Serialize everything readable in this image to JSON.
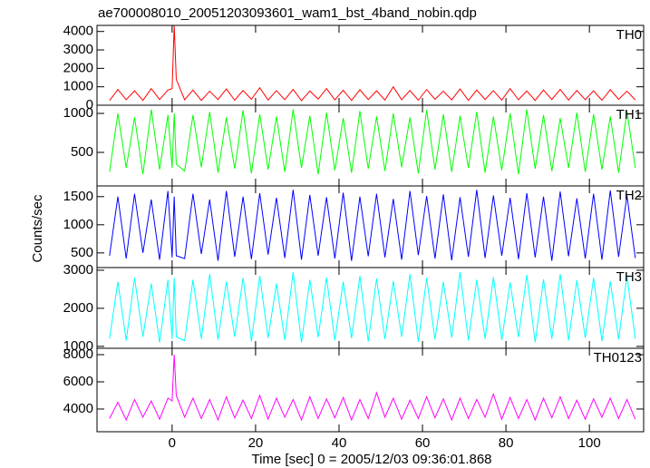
{
  "title": "ae700008010_20051203093601_wam1_bst_4band_nobin.qdp",
  "x_label": "Time [sec] 0 = 2005/12/03 09:36:01.868",
  "y_label": "Counts/sec",
  "chart_data": [
    {
      "type": "line",
      "name": "TH0",
      "color": "#ff0000",
      "x": [
        -15,
        -13,
        -11,
        -9,
        -7,
        -5,
        -3,
        -1,
        0,
        0.5,
        1,
        3,
        5,
        7,
        9,
        11,
        13,
        15,
        17,
        19,
        21,
        23,
        25,
        27,
        29,
        31,
        33,
        35,
        37,
        39,
        41,
        43,
        45,
        47,
        49,
        51,
        53,
        55,
        57,
        59,
        61,
        63,
        65,
        67,
        69,
        71,
        73,
        75,
        77,
        79,
        81,
        83,
        85,
        87,
        89,
        91,
        93,
        95,
        97,
        99,
        101,
        103,
        105,
        107,
        109,
        111
      ],
      "values": [
        250,
        850,
        300,
        780,
        260,
        900,
        310,
        820,
        900,
        4330,
        1400,
        300,
        820,
        260,
        760,
        310,
        880,
        270,
        800,
        320,
        950,
        280,
        790,
        300,
        860,
        250,
        770,
        330,
        900,
        290,
        810,
        260,
        840,
        310,
        780,
        280,
        1000,
        300,
        800,
        270,
        850,
        320,
        760,
        290,
        880,
        260,
        820,
        310,
        790,
        280,
        900,
        300,
        770,
        260,
        830,
        310,
        860,
        280,
        800,
        300,
        780,
        270,
        840,
        320,
        760,
        290
      ],
      "xlim": [
        -18,
        113
      ],
      "xticks": [
        0,
        20,
        40,
        60,
        80,
        100
      ],
      "ylim": [
        0,
        4330
      ],
      "yticks": [
        0,
        1000,
        2000,
        3000,
        4000
      ]
    },
    {
      "type": "line",
      "name": "TH1",
      "color": "#00ff00",
      "x": [
        -15,
        -13,
        -11,
        -9,
        -7,
        -5,
        -3,
        -1,
        0,
        0.5,
        1,
        3,
        5,
        7,
        9,
        11,
        13,
        15,
        17,
        19,
        21,
        23,
        25,
        27,
        29,
        31,
        33,
        35,
        37,
        39,
        41,
        43,
        45,
        47,
        49,
        51,
        53,
        55,
        57,
        59,
        61,
        63,
        65,
        67,
        69,
        71,
        73,
        75,
        77,
        79,
        81,
        83,
        85,
        87,
        89,
        91,
        93,
        95,
        97,
        99,
        101,
        103,
        105,
        107,
        109,
        111
      ],
      "values": [
        250,
        1000,
        300,
        950,
        220,
        1050,
        280,
        980,
        300,
        1000,
        350,
        260,
        980,
        310,
        1020,
        240,
        950,
        290,
        1040,
        230,
        990,
        280,
        960,
        250,
        1050,
        300,
        970,
        220,
        1010,
        270,
        940,
        240,
        1030,
        290,
        960,
        260,
        1000,
        310,
        950,
        230,
        1045,
        280,
        990,
        250,
        970,
        300,
        1020,
        240,
        960,
        270,
        1000,
        220,
        1050,
        290,
        980,
        260,
        940,
        300,
        1010,
        250,
        990,
        280,
        960,
        240,
        1030,
        300
      ],
      "xlim": [
        -18,
        113
      ],
      "xticks": [
        0,
        20,
        40,
        60,
        80,
        100
      ],
      "ylim": [
        70,
        1105
      ],
      "yticks": [
        500,
        1000
      ]
    },
    {
      "type": "line",
      "name": "TH2",
      "color": "#0000ff",
      "x": [
        -15,
        -13,
        -11,
        -9,
        -7,
        -5,
        -3,
        -1,
        0,
        0.5,
        1,
        3,
        5,
        7,
        9,
        11,
        13,
        15,
        17,
        19,
        21,
        23,
        25,
        27,
        29,
        31,
        33,
        35,
        37,
        39,
        41,
        43,
        45,
        47,
        49,
        51,
        53,
        55,
        57,
        59,
        61,
        63,
        65,
        67,
        69,
        71,
        73,
        75,
        77,
        79,
        81,
        83,
        85,
        87,
        89,
        91,
        93,
        95,
        97,
        99,
        101,
        103,
        105,
        107,
        109,
        111
      ],
      "values": [
        450,
        1500,
        400,
        1550,
        500,
        1450,
        380,
        1600,
        420,
        1500,
        450,
        400,
        1550,
        480,
        1450,
        360,
        1600,
        430,
        1500,
        390,
        1560,
        470,
        1480,
        410,
        1620,
        380,
        1530,
        450,
        1490,
        400,
        1570,
        360,
        1500,
        440,
        1550,
        420,
        1460,
        380,
        1600,
        460,
        1510,
        400,
        1540,
        370,
        1490,
        430,
        1620,
        410,
        1520,
        450,
        1480,
        390,
        1560,
        420,
        1500,
        360,
        1590,
        440,
        1470,
        400,
        1550,
        380,
        1610,
        430,
        1520,
        410
      ],
      "xlim": [
        -18,
        113
      ],
      "xticks": [
        0,
        20,
        40,
        60,
        80,
        100
      ],
      "ylim": [
        240,
        1690
      ],
      "yticks": [
        500,
        1000,
        1500
      ]
    },
    {
      "type": "line",
      "name": "TH3",
      "color": "#00ffff",
      "x": [
        -15,
        -13,
        -11,
        -9,
        -7,
        -5,
        -3,
        -1,
        0,
        0.5,
        1,
        3,
        5,
        7,
        9,
        11,
        13,
        15,
        17,
        19,
        21,
        23,
        25,
        27,
        29,
        31,
        33,
        35,
        37,
        39,
        41,
        43,
        45,
        47,
        49,
        51,
        53,
        55,
        57,
        59,
        61,
        63,
        65,
        67,
        69,
        71,
        73,
        75,
        77,
        79,
        81,
        83,
        85,
        87,
        89,
        91,
        93,
        95,
        97,
        99,
        101,
        103,
        105,
        107,
        109,
        111
      ],
      "values": [
        1200,
        2700,
        1150,
        2800,
        1250,
        2650,
        1100,
        2750,
        1200,
        2800,
        1250,
        1150,
        2750,
        1200,
        2900,
        1180,
        2700,
        1250,
        2800,
        1130,
        2850,
        1220,
        2650,
        1170,
        2950,
        1100,
        2750,
        1240,
        2800,
        1160,
        2700,
        1210,
        2850,
        1130,
        2780,
        1190,
        2720,
        1250,
        2900,
        1120,
        2800,
        1180,
        2700,
        1230,
        2950,
        1150,
        2750,
        1200,
        2820,
        1170,
        2680,
        1240,
        2880,
        1110,
        2760,
        1200,
        2900,
        1160,
        2740,
        1220,
        2800,
        1140,
        2710,
        1190,
        2850,
        1200
      ],
      "xlim": [
        -18,
        113
      ],
      "xticks": [
        0,
        20,
        40,
        60,
        80,
        100
      ],
      "ylim": [
        950,
        3070
      ],
      "yticks": [
        1000,
        2000,
        3000
      ]
    },
    {
      "type": "line",
      "name": "TH0123",
      "color": "#ff00ff",
      "x": [
        -15,
        -13,
        -11,
        -9,
        -7,
        -5,
        -3,
        -1,
        0,
        0.5,
        1,
        3,
        5,
        7,
        9,
        11,
        13,
        15,
        17,
        19,
        21,
        23,
        25,
        27,
        29,
        31,
        33,
        35,
        37,
        39,
        41,
        43,
        45,
        47,
        49,
        51,
        53,
        55,
        57,
        59,
        61,
        63,
        65,
        67,
        69,
        71,
        73,
        75,
        77,
        79,
        81,
        83,
        85,
        87,
        89,
        91,
        93,
        95,
        97,
        99,
        101,
        103,
        105,
        107,
        109,
        111
      ],
      "values": [
        3300,
        4500,
        3200,
        4700,
        3400,
        4600,
        3250,
        4800,
        4600,
        8000,
        5000,
        3400,
        4800,
        3300,
        4700,
        3200,
        4900,
        3350,
        4650,
        3300,
        5000,
        3250,
        4800,
        3400,
        4700,
        3200,
        4900,
        3300,
        4750,
        3350,
        4850,
        3200,
        4700,
        3300,
        5200,
        3400,
        4800,
        3250,
        4650,
        3300,
        4900,
        3350,
        4750,
        3200,
        4800,
        3300,
        4700,
        3400,
        5100,
        3250,
        4850,
        3300,
        4700,
        3200,
        4800,
        3350,
        4900,
        3300,
        4650,
        3250,
        4750,
        3400,
        4800,
        3300,
        4700,
        3250
      ],
      "xlim": [
        -18,
        113
      ],
      "xticks": [
        0,
        20,
        40,
        60,
        80,
        100
      ],
      "ylim": [
        2330,
        8470
      ],
      "yticks": [
        4000,
        6000,
        8000
      ]
    }
  ]
}
